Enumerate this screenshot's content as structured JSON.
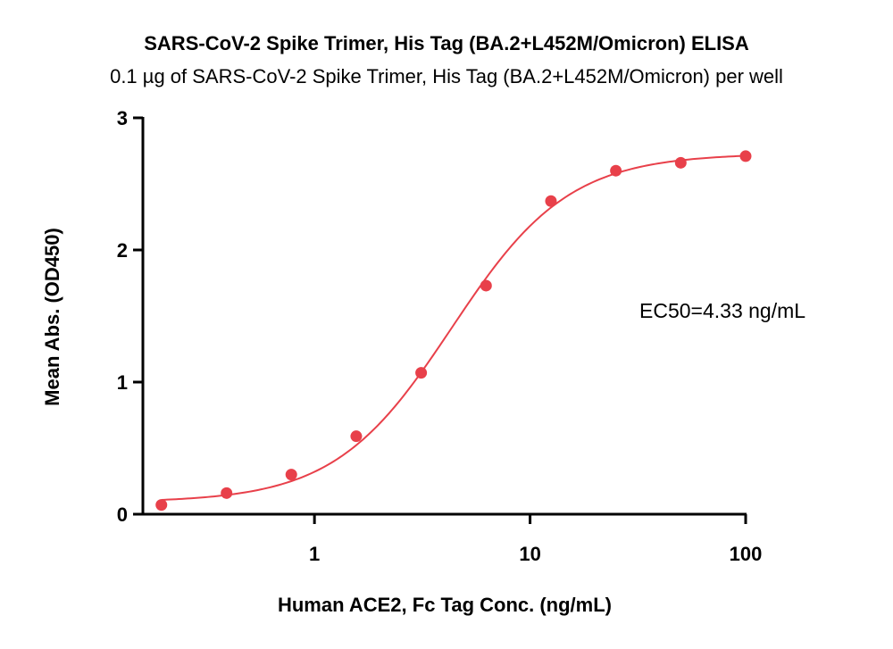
{
  "chart_data": {
    "type": "scatter",
    "title": "SARS-CoV-2 Spike Trimer, His Tag (BA.2+L452M/Omicron) ELISA",
    "subtitle": "0.1 µg of SARS-CoV-2 Spike Trimer, His Tag (BA.2+L452M/Omicron) per well",
    "xlabel": "Human ACE2, Fc Tag Conc. (ng/mL)",
    "ylabel": "Mean Abs. (OD450)",
    "x_scale": "log",
    "xlim": [
      0.16,
      100
    ],
    "ylim": [
      0,
      3
    ],
    "x_ticks": [
      1,
      10,
      100
    ],
    "x_tick_labels": [
      "1",
      "10",
      "100"
    ],
    "y_ticks": [
      0,
      1,
      2,
      3
    ],
    "y_tick_labels": [
      "0",
      "1",
      "2",
      "3"
    ],
    "grid": false,
    "series": [
      {
        "x": [
          0.195,
          0.391,
          0.781,
          1.5625,
          3.125,
          6.25,
          12.5,
          25,
          50,
          100
        ],
        "y": [
          0.07,
          0.16,
          0.3,
          0.59,
          1.07,
          1.73,
          2.37,
          2.6,
          2.66,
          2.71
        ],
        "color": "#e8404a",
        "fit": {
          "type": "4PL",
          "bottom": 0.09,
          "top": 2.73,
          "ec50": 4.33,
          "hill": 1.6
        }
      }
    ],
    "annotation": "EC50=4.33 ng/mL"
  }
}
